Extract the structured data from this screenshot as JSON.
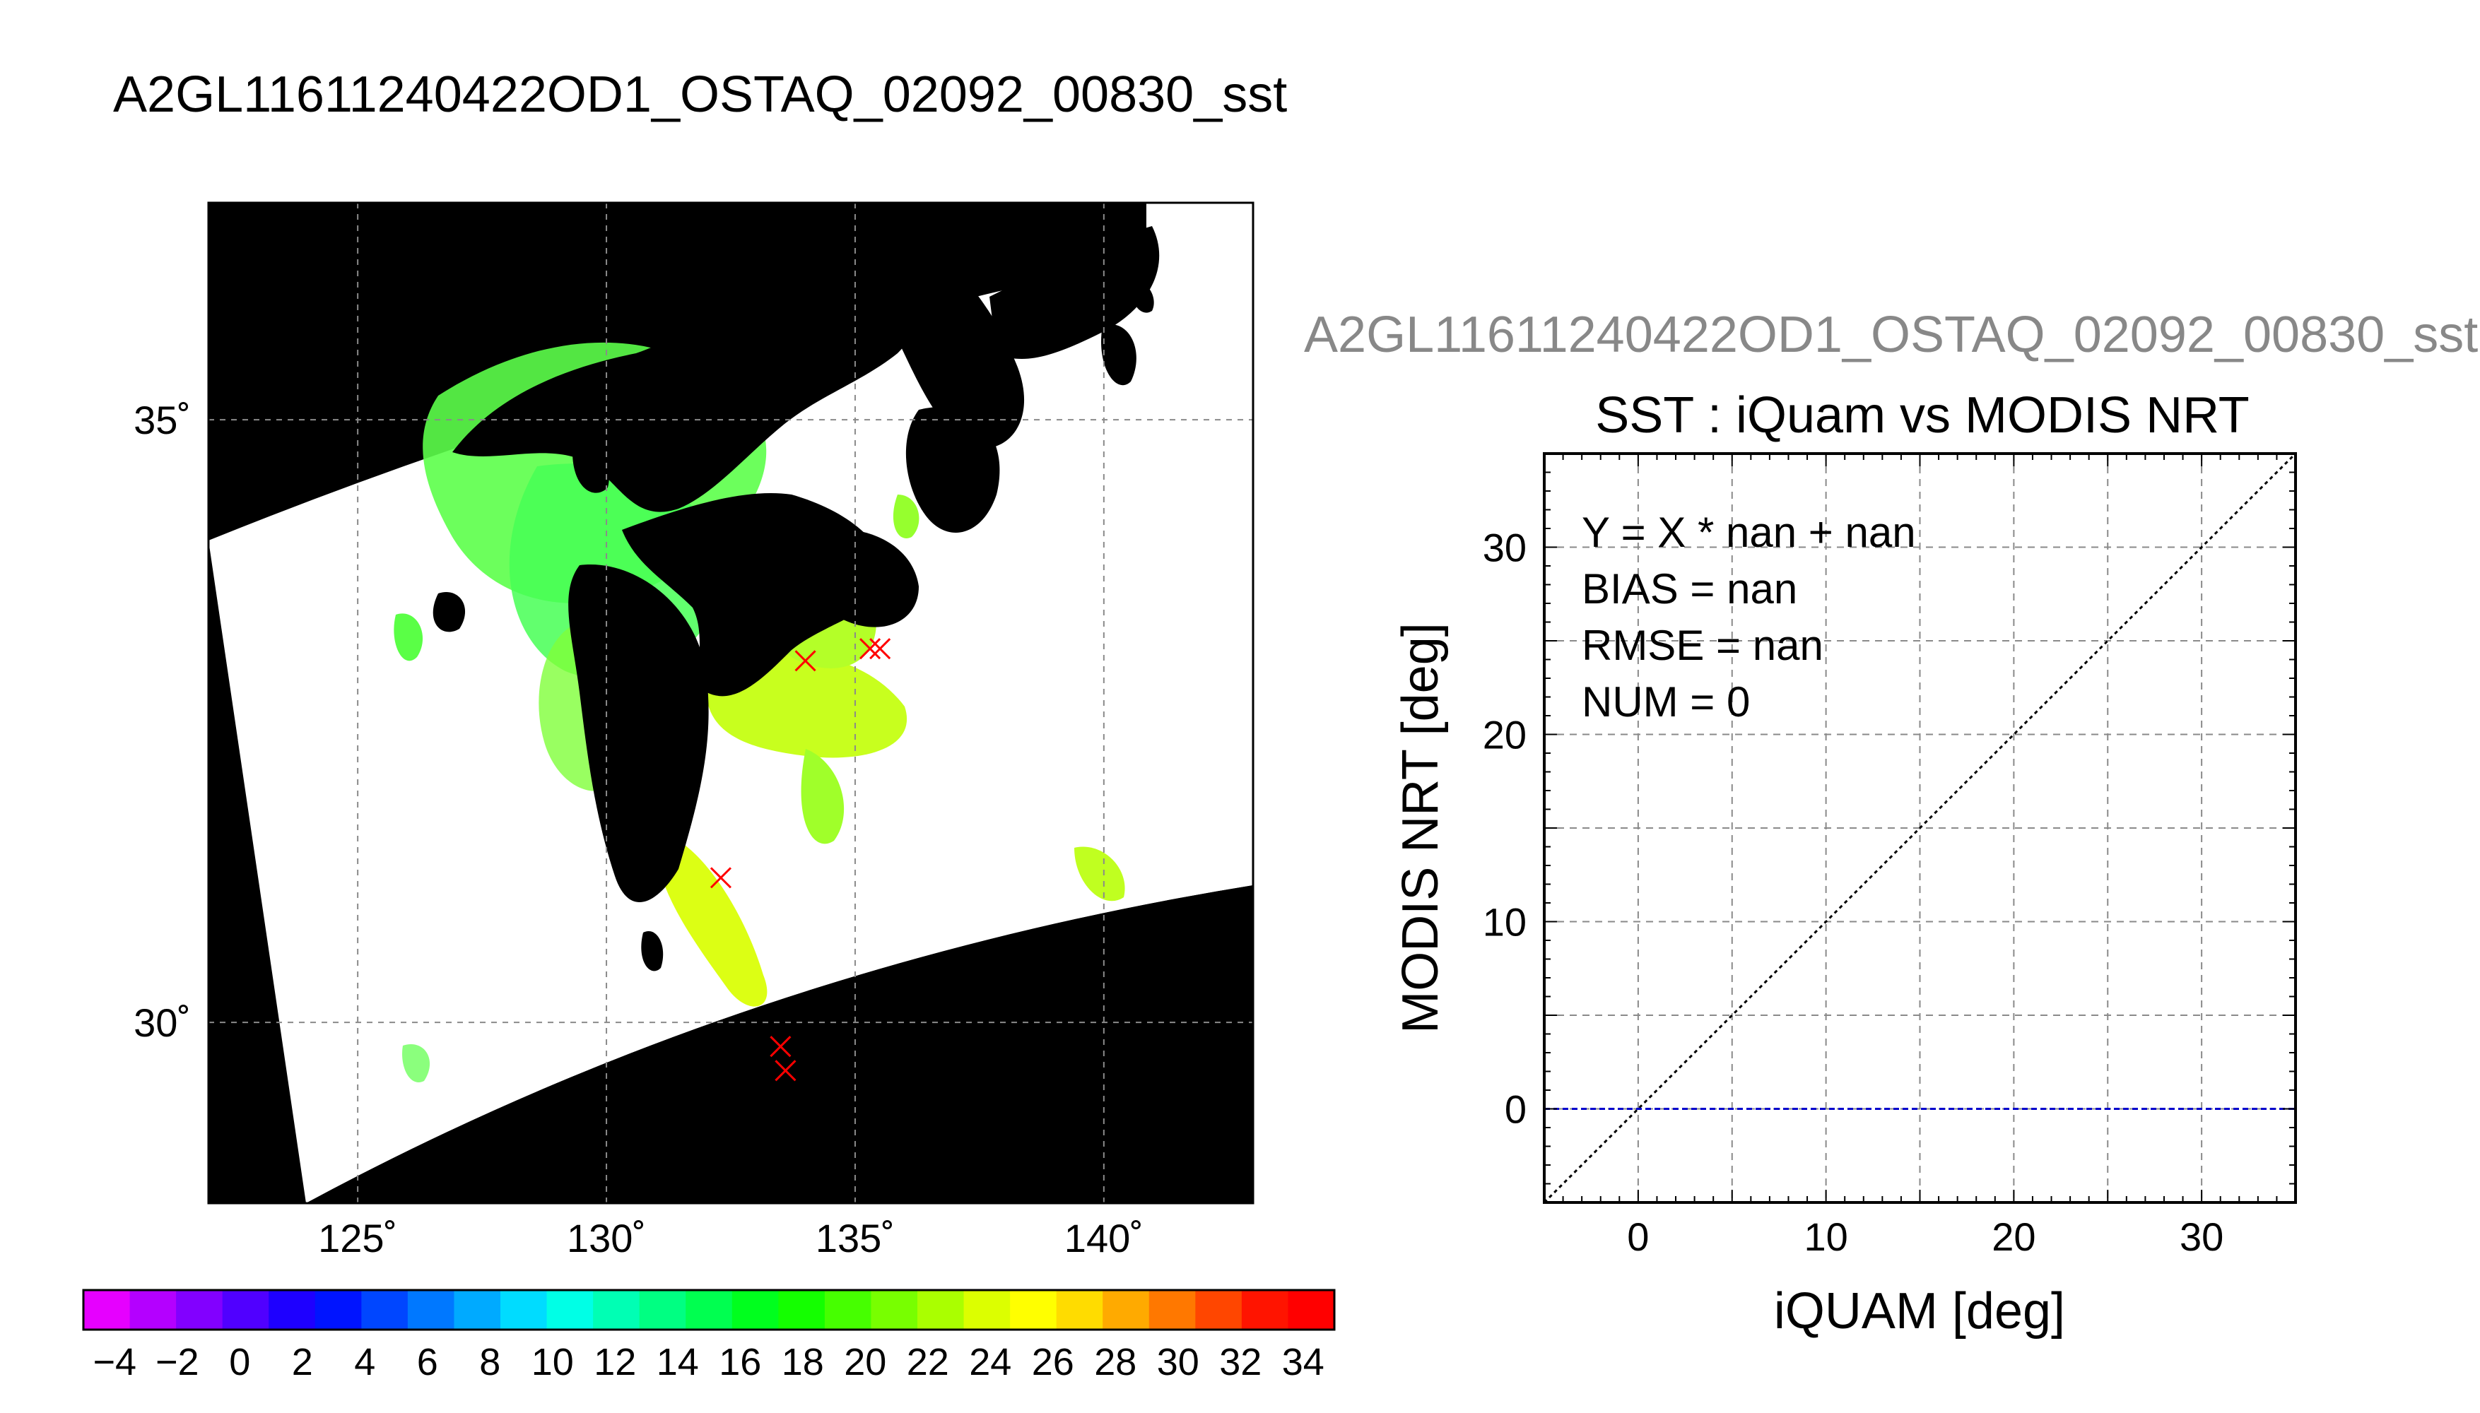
{
  "page_title": "A2GL11611240422OD1_OSTAQ_02092_00830_sst",
  "chart_data": [
    {
      "type": "heatmap",
      "title": "A2GL11611240422OD1_OSTAQ_02092_00830_sst",
      "description_ticks": true,
      "xlim": [
        122,
        143
      ],
      "ylim": [
        28.5,
        36.8
      ],
      "x_ticks": [
        125,
        130,
        135,
        140
      ],
      "x_tick_labels": [
        "125˚",
        "130˚",
        "135˚",
        "140˚"
      ],
      "y_ticks": [
        30,
        35
      ],
      "y_tick_labels": [
        "30˚",
        "35˚"
      ],
      "grid": true,
      "markers": {
        "symbol": "x",
        "color": "#ff0000",
        "points": [
          {
            "lon": 134.0,
            "lat": 33.0
          },
          {
            "lon": 135.3,
            "lat": 33.1
          },
          {
            "lon": 135.5,
            "lat": 33.1
          },
          {
            "lon": 132.3,
            "lat": 31.2
          },
          {
            "lon": 133.5,
            "lat": 29.8
          },
          {
            "lon": 133.6,
            "lat": 29.6
          }
        ]
      },
      "colorbar": {
        "min": -5,
        "max": 35,
        "tick_labels": [
          "−4",
          "−2",
          "0",
          "2",
          "4",
          "6",
          "8",
          "10",
          "12",
          "14",
          "16",
          "18",
          "20",
          "22",
          "24",
          "26",
          "28",
          "30",
          "32",
          "34"
        ],
        "tick_values": [
          -4,
          -2,
          0,
          2,
          4,
          6,
          8,
          10,
          12,
          14,
          16,
          18,
          20,
          22,
          24,
          26,
          28,
          30,
          32,
          34
        ],
        "colors": [
          "#e600ff",
          "#b400ff",
          "#8200ff",
          "#5000ff",
          "#1e00ff",
          "#0014ff",
          "#0046ff",
          "#0078ff",
          "#00aaff",
          "#00dcff",
          "#00ffe6",
          "#00ffb4",
          "#00ff82",
          "#00ff50",
          "#00ff1e",
          "#14ff00",
          "#46ff00",
          "#78ff00",
          "#aaff00",
          "#dcff00",
          "#ffff00",
          "#ffdc00",
          "#ffaa00",
          "#ff7800",
          "#ff4600",
          "#ff1400",
          "#ff0000"
        ]
      }
    },
    {
      "type": "scatter",
      "subtitle": "A2GL11611240422OD1_OSTAQ_02092_00830_sst",
      "title": "SST : iQuam vs MODIS NRT",
      "xlabel": "iQUAM [deg]",
      "ylabel": "MODIS NRT [deg]",
      "xlim": [
        -5,
        35
      ],
      "ylim": [
        -5,
        35
      ],
      "x_ticks": [
        0,
        10,
        20,
        30
      ],
      "x_tick_labels": [
        "0",
        "10",
        "20",
        "30"
      ],
      "y_ticks": [
        0,
        10,
        20,
        30
      ],
      "y_tick_labels": [
        "0",
        "10",
        "20",
        "30"
      ],
      "grid_step": 5,
      "grid": true,
      "series": [
        {
          "name": "",
          "x": [],
          "y": []
        }
      ],
      "reference_lines": [
        {
          "kind": "identity",
          "style": "dotted",
          "color": "#000000"
        },
        {
          "kind": "horizontal",
          "y": 0,
          "style": "dashed",
          "color": "#0000cc"
        }
      ],
      "stats": [
        "Y = X * nan + nan",
        "BIAS = nan",
        "RMSE = nan",
        "NUM = 0"
      ]
    }
  ]
}
